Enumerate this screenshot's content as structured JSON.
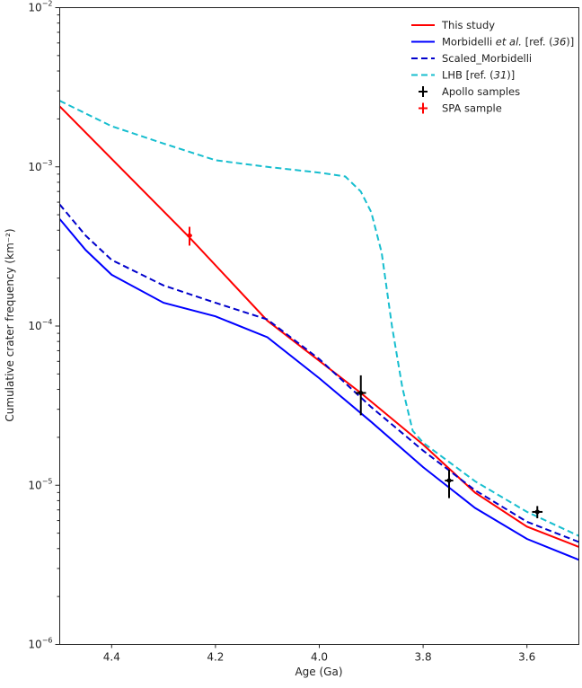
{
  "chart_data": {
    "type": "line",
    "title": "",
    "xlabel": "Age (Ga)",
    "ylabel": "Cumulative crater frequency (km⁻²)",
    "xlim": [
      4.5,
      3.5
    ],
    "x_reversed": true,
    "ylim": [
      1e-06,
      0.01
    ],
    "y_scale": "log",
    "grid": false,
    "legend_position": "top-right",
    "x_ticks": [
      "4.4",
      "4.2",
      "4.0",
      "3.8",
      "3.6"
    ],
    "x_tick_values": [
      4.4,
      4.2,
      4.0,
      3.8,
      3.6
    ],
    "y_ticks": [
      {
        "base": "10",
        "exp": "−2",
        "value": 0.01
      },
      {
        "base": "10",
        "exp": "−3",
        "value": 0.001
      },
      {
        "base": "10",
        "exp": "−4",
        "value": 0.0001
      },
      {
        "base": "10",
        "exp": "−5",
        "value": 1e-05
      },
      {
        "base": "10",
        "exp": "−6",
        "value": 1e-06
      }
    ],
    "series": [
      {
        "name": "This study",
        "color": "#ff0000",
        "style": "solid",
        "x": [
          4.5,
          4.25,
          4.1,
          3.92,
          3.8,
          3.7,
          3.6,
          3.5
        ],
        "y": [
          0.0024,
          0.00036,
          0.000108,
          3.8e-05,
          1.8e-05,
          9e-06,
          5.5e-06,
          4.1e-06
        ]
      },
      {
        "name": "Morbidelli et al. [ref. (36)]",
        "color": "#0000ff",
        "style": "solid",
        "x": [
          4.5,
          4.45,
          4.4,
          4.3,
          4.2,
          4.1,
          4.0,
          3.9,
          3.8,
          3.7,
          3.6,
          3.5
        ],
        "y": [
          0.00047,
          0.0003,
          0.00021,
          0.00014,
          0.000115,
          8.5e-05,
          4.7e-05,
          2.5e-05,
          1.3e-05,
          7.2e-06,
          4.6e-06,
          3.4e-06
        ]
      },
      {
        "name": "Scaled_Morbidelli",
        "color": "#0000cc",
        "style": "dashed",
        "x": [
          4.5,
          4.45,
          4.4,
          4.3,
          4.2,
          4.1,
          4.0,
          3.9,
          3.8,
          3.7,
          3.6,
          3.5
        ],
        "y": [
          0.00058,
          0.00037,
          0.00026,
          0.00018,
          0.00014,
          0.00011,
          6.2e-05,
          3.1e-05,
          1.65e-05,
          9.3e-06,
          5.9e-06,
          4.4e-06
        ]
      },
      {
        "name": "LHB [ref. (31)]",
        "color": "#17becf",
        "style": "dashed",
        "x": [
          4.5,
          4.4,
          4.3,
          4.2,
          4.1,
          4.0,
          3.95,
          3.92,
          3.9,
          3.88,
          3.86,
          3.84,
          3.82,
          3.8,
          3.7,
          3.6,
          3.5
        ],
        "y": [
          0.0026,
          0.0018,
          0.0014,
          0.0011,
          0.001,
          0.00092,
          0.00087,
          0.0007,
          0.00052,
          0.00029,
          0.0001,
          4.1e-05,
          2.2e-05,
          1.85e-05,
          1.06e-05,
          6.8e-06,
          4.8e-06
        ]
      }
    ],
    "points": [
      {
        "name": "Apollo samples",
        "color": "#000000",
        "data": [
          {
            "x": 3.92,
            "y": 3.8e-05,
            "xerr": 0.01,
            "ylo": 2.75e-05,
            "yhi": 4.9e-05
          },
          {
            "x": 3.75,
            "y": 1.07e-05,
            "xerr": 0.008,
            "ylo": 8.3e-06,
            "yhi": 1.25e-05
          },
          {
            "x": 3.58,
            "y": 6.8e-06,
            "xerr": 0.01,
            "ylo": 6.2e-06,
            "yhi": 7.4e-06
          }
        ]
      },
      {
        "name": "SPA sample",
        "color": "#ff0000",
        "data": [
          {
            "x": 4.25,
            "y": 0.00037,
            "xerr": 0.005,
            "ylo": 0.00032,
            "yhi": 0.00042
          }
        ]
      }
    ],
    "legend": [
      {
        "label": "This study",
        "label_rest": "",
        "italic": "",
        "ref_pre": "",
        "ref_num": "",
        "ref_post": ""
      },
      {
        "label": "Morbidelli ",
        "italic": "et al.",
        "ref_pre": " [ref. (",
        "ref_num": "36",
        "ref_post": ")]"
      },
      {
        "label": "Scaled_Morbidelli",
        "italic": "",
        "ref_pre": "",
        "ref_num": "",
        "ref_post": ""
      },
      {
        "label": "LHB [ref. (",
        "italic": "",
        "ref_pre": "",
        "ref_num": "31",
        "ref_post": ")]"
      },
      {
        "label": "Apollo samples",
        "italic": "",
        "ref_pre": "",
        "ref_num": "",
        "ref_post": ""
      },
      {
        "label": "SPA sample",
        "italic": "",
        "ref_pre": "",
        "ref_num": "",
        "ref_post": ""
      }
    ]
  }
}
